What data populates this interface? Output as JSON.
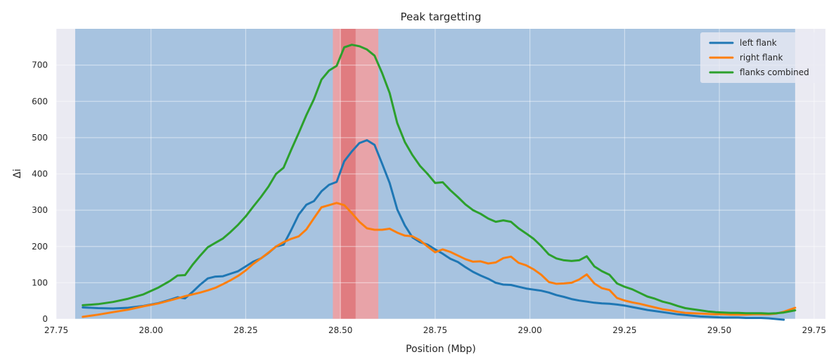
{
  "chart_data": {
    "type": "line",
    "title": "Peak targetting",
    "xlabel": "Position (Mbp)",
    "ylabel": "Δi",
    "xlim": [
      27.75,
      29.78
    ],
    "ylim": [
      0,
      800
    ],
    "xticks": [
      "27.75",
      "28.00",
      "28.25",
      "28.50",
      "28.75",
      "29.00",
      "29.25",
      "29.50",
      "29.75"
    ],
    "yticks": [
      "0",
      "100",
      "200",
      "300",
      "400",
      "500",
      "600",
      "700"
    ],
    "grid": true,
    "legend_position": "top-right",
    "background_color": "#eaeaf2",
    "shaded_regions": [
      {
        "kind": "search window",
        "x0": 27.8,
        "x1": 29.7,
        "color": "#a7c3e0"
      },
      {
        "kind": "peak interval",
        "x0": 28.48,
        "x1": 28.6,
        "color": "#e8a3a8"
      },
      {
        "kind": "peak core",
        "x0": 28.5,
        "x1": 28.54,
        "color": "#e07c80"
      }
    ],
    "series": [
      {
        "name": "left flank",
        "color": "#1f77b4",
        "points": [
          [
            27.82,
            32
          ],
          [
            27.86,
            30
          ],
          [
            27.9,
            29
          ],
          [
            27.94,
            31
          ],
          [
            27.98,
            36
          ],
          [
            28.02,
            44
          ],
          [
            28.05,
            53
          ],
          [
            28.07,
            60
          ],
          [
            28.09,
            57
          ],
          [
            28.11,
            75
          ],
          [
            28.13,
            95
          ],
          [
            28.15,
            112
          ],
          [
            28.17,
            117
          ],
          [
            28.19,
            118
          ],
          [
            28.21,
            125
          ],
          [
            28.23,
            132
          ],
          [
            28.25,
            145
          ],
          [
            28.27,
            158
          ],
          [
            28.29,
            167
          ],
          [
            28.31,
            182
          ],
          [
            28.33,
            200
          ],
          [
            28.35,
            205
          ],
          [
            28.37,
            245
          ],
          [
            28.39,
            288
          ],
          [
            28.41,
            315
          ],
          [
            28.43,
            325
          ],
          [
            28.45,
            352
          ],
          [
            28.47,
            370
          ],
          [
            28.49,
            378
          ],
          [
            28.51,
            435
          ],
          [
            28.53,
            462
          ],
          [
            28.55,
            485
          ],
          [
            28.57,
            493
          ],
          [
            28.59,
            480
          ],
          [
            28.61,
            428
          ],
          [
            28.63,
            375
          ],
          [
            28.65,
            302
          ],
          [
            28.67,
            258
          ],
          [
            28.69,
            225
          ],
          [
            28.71,
            212
          ],
          [
            28.73,
            205
          ],
          [
            28.75,
            192
          ],
          [
            28.77,
            180
          ],
          [
            28.79,
            166
          ],
          [
            28.81,
            157
          ],
          [
            28.83,
            143
          ],
          [
            28.85,
            130
          ],
          [
            28.87,
            120
          ],
          [
            28.89,
            111
          ],
          [
            28.91,
            100
          ],
          [
            28.93,
            95
          ],
          [
            28.95,
            94
          ],
          [
            28.97,
            89
          ],
          [
            28.99,
            84
          ],
          [
            29.01,
            81
          ],
          [
            29.03,
            78
          ],
          [
            29.05,
            73
          ],
          [
            29.07,
            66
          ],
          [
            29.09,
            61
          ],
          [
            29.11,
            55
          ],
          [
            29.13,
            51
          ],
          [
            29.15,
            48
          ],
          [
            29.17,
            45
          ],
          [
            29.19,
            43
          ],
          [
            29.21,
            42
          ],
          [
            29.23,
            40
          ],
          [
            29.25,
            37
          ],
          [
            29.27,
            33
          ],
          [
            29.29,
            29
          ],
          [
            29.31,
            25
          ],
          [
            29.33,
            22
          ],
          [
            29.35,
            19
          ],
          [
            29.37,
            16
          ],
          [
            29.39,
            13
          ],
          [
            29.41,
            11
          ],
          [
            29.43,
            9
          ],
          [
            29.45,
            7
          ],
          [
            29.47,
            6
          ],
          [
            29.49,
            5
          ],
          [
            29.51,
            4
          ],
          [
            29.53,
            4
          ],
          [
            29.55,
            4
          ],
          [
            29.57,
            3
          ],
          [
            29.59,
            3
          ],
          [
            29.61,
            3
          ],
          [
            29.63,
            2
          ],
          [
            29.65,
            0
          ],
          [
            29.67,
            -2
          ]
        ]
      },
      {
        "name": "right flank",
        "color": "#ff7f0e",
        "points": [
          [
            27.82,
            6
          ],
          [
            27.86,
            12
          ],
          [
            27.9,
            19
          ],
          [
            27.94,
            26
          ],
          [
            27.98,
            35
          ],
          [
            28.02,
            43
          ],
          [
            28.06,
            54
          ],
          [
            28.09,
            63
          ],
          [
            28.11,
            68
          ],
          [
            28.13,
            73
          ],
          [
            28.15,
            79
          ],
          [
            28.17,
            86
          ],
          [
            28.19,
            96
          ],
          [
            28.21,
            107
          ],
          [
            28.23,
            119
          ],
          [
            28.25,
            134
          ],
          [
            28.27,
            152
          ],
          [
            28.29,
            167
          ],
          [
            28.31,
            183
          ],
          [
            28.33,
            200
          ],
          [
            28.35,
            212
          ],
          [
            28.37,
            221
          ],
          [
            28.39,
            228
          ],
          [
            28.41,
            247
          ],
          [
            28.43,
            278
          ],
          [
            28.45,
            308
          ],
          [
            28.47,
            314
          ],
          [
            28.49,
            320
          ],
          [
            28.51,
            314
          ],
          [
            28.53,
            292
          ],
          [
            28.55,
            268
          ],
          [
            28.57,
            250
          ],
          [
            28.59,
            246
          ],
          [
            28.61,
            246
          ],
          [
            28.63,
            249
          ],
          [
            28.65,
            238
          ],
          [
            28.67,
            230
          ],
          [
            28.69,
            228
          ],
          [
            28.71,
            217
          ],
          [
            28.73,
            200
          ],
          [
            28.75,
            184
          ],
          [
            28.77,
            192
          ],
          [
            28.79,
            185
          ],
          [
            28.81,
            175
          ],
          [
            28.83,
            165
          ],
          [
            28.85,
            158
          ],
          [
            28.87,
            159
          ],
          [
            28.89,
            153
          ],
          [
            28.91,
            156
          ],
          [
            28.93,
            168
          ],
          [
            28.95,
            172
          ],
          [
            28.97,
            155
          ],
          [
            28.99,
            148
          ],
          [
            29.01,
            137
          ],
          [
            29.03,
            122
          ],
          [
            29.05,
            102
          ],
          [
            29.07,
            97
          ],
          [
            29.09,
            98
          ],
          [
            29.11,
            100
          ],
          [
            29.13,
            109
          ],
          [
            29.15,
            123
          ],
          [
            29.17,
            98
          ],
          [
            29.19,
            85
          ],
          [
            29.21,
            80
          ],
          [
            29.23,
            58
          ],
          [
            29.25,
            51
          ],
          [
            29.27,
            46
          ],
          [
            29.29,
            42
          ],
          [
            29.31,
            37
          ],
          [
            29.33,
            32
          ],
          [
            29.35,
            27
          ],
          [
            29.37,
            24
          ],
          [
            29.39,
            20
          ],
          [
            29.41,
            17
          ],
          [
            29.43,
            16
          ],
          [
            29.45,
            15
          ],
          [
            29.47,
            14
          ],
          [
            29.49,
            13
          ],
          [
            29.51,
            13
          ],
          [
            29.53,
            12
          ],
          [
            29.55,
            12
          ],
          [
            29.57,
            12
          ],
          [
            29.59,
            13
          ],
          [
            29.61,
            13
          ],
          [
            29.63,
            13
          ],
          [
            29.65,
            15
          ],
          [
            29.67,
            20
          ],
          [
            29.7,
            31
          ]
        ]
      },
      {
        "name": "flanks combined",
        "color": "#2ca02c",
        "points": [
          [
            27.82,
            38
          ],
          [
            27.86,
            41
          ],
          [
            27.9,
            47
          ],
          [
            27.94,
            56
          ],
          [
            27.98,
            68
          ],
          [
            28.02,
            87
          ],
          [
            28.05,
            105
          ],
          [
            28.07,
            120
          ],
          [
            28.09,
            121
          ],
          [
            28.11,
            150
          ],
          [
            28.13,
            175
          ],
          [
            28.15,
            198
          ],
          [
            28.17,
            210
          ],
          [
            28.19,
            222
          ],
          [
            28.21,
            240
          ],
          [
            28.23,
            260
          ],
          [
            28.25,
            283
          ],
          [
            28.27,
            310
          ],
          [
            28.29,
            336
          ],
          [
            28.31,
            365
          ],
          [
            28.33,
            400
          ],
          [
            28.35,
            417
          ],
          [
            28.37,
            466
          ],
          [
            28.39,
            513
          ],
          [
            28.41,
            562
          ],
          [
            28.43,
            606
          ],
          [
            28.45,
            660
          ],
          [
            28.47,
            685
          ],
          [
            28.49,
            698
          ],
          [
            28.51,
            749
          ],
          [
            28.53,
            756
          ],
          [
            28.55,
            752
          ],
          [
            28.57,
            743
          ],
          [
            28.59,
            726
          ],
          [
            28.61,
            678
          ],
          [
            28.63,
            623
          ],
          [
            28.65,
            540
          ],
          [
            28.67,
            488
          ],
          [
            28.69,
            452
          ],
          [
            28.71,
            422
          ],
          [
            28.73,
            400
          ],
          [
            28.75,
            375
          ],
          [
            28.77,
            377
          ],
          [
            28.79,
            355
          ],
          [
            28.81,
            336
          ],
          [
            28.83,
            316
          ],
          [
            28.85,
            300
          ],
          [
            28.87,
            290
          ],
          [
            28.89,
            277
          ],
          [
            28.91,
            268
          ],
          [
            28.93,
            272
          ],
          [
            28.95,
            268
          ],
          [
            28.97,
            250
          ],
          [
            28.99,
            236
          ],
          [
            29.01,
            221
          ],
          [
            29.03,
            201
          ],
          [
            29.05,
            178
          ],
          [
            29.07,
            167
          ],
          [
            29.09,
            162
          ],
          [
            29.11,
            160
          ],
          [
            29.13,
            162
          ],
          [
            29.15,
            173
          ],
          [
            29.17,
            145
          ],
          [
            29.19,
            132
          ],
          [
            29.21,
            122
          ],
          [
            29.23,
            98
          ],
          [
            29.25,
            89
          ],
          [
            29.27,
            82
          ],
          [
            29.29,
            72
          ],
          [
            29.31,
            62
          ],
          [
            29.33,
            56
          ],
          [
            29.35,
            48
          ],
          [
            29.37,
            43
          ],
          [
            29.39,
            36
          ],
          [
            29.41,
            30
          ],
          [
            29.43,
            27
          ],
          [
            29.45,
            24
          ],
          [
            29.47,
            21
          ],
          [
            29.49,
            19
          ],
          [
            29.51,
            18
          ],
          [
            29.53,
            17
          ],
          [
            29.55,
            17
          ],
          [
            29.57,
            16
          ],
          [
            29.59,
            16
          ],
          [
            29.61,
            16
          ],
          [
            29.63,
            15
          ],
          [
            29.65,
            16
          ],
          [
            29.67,
            18
          ],
          [
            29.7,
            24
          ]
        ]
      }
    ]
  }
}
